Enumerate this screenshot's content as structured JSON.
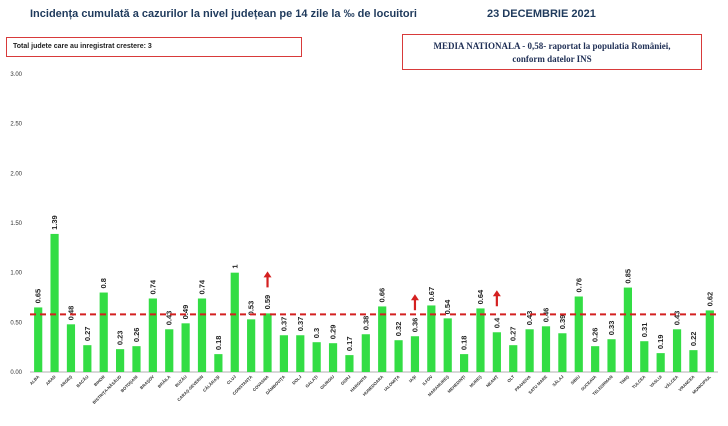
{
  "header": {
    "title": "Incidența cumulată a cazurilor la nivel județean pe 14 zile la ‰ de locuitori",
    "date": "23 DECEMBRIE 2021"
  },
  "notes": {
    "left": "Total judete care au inregistrat crestere: 3",
    "right_line1": "MEDIA NATIONALA - 0,58-  raportat la populatia României,",
    "right_line2": "conform datelor INS"
  },
  "colors": {
    "bar": "#33dd44",
    "mean_line": "#d42020",
    "arrow": "#d42020"
  },
  "chart_data": {
    "type": "bar",
    "categories": [
      "ALBA",
      "ARAD",
      "ARGEŞ",
      "BACĂU",
      "BIHOR",
      "BISTRIŢA-NĂSĂUD",
      "BOTOŞANI",
      "BRAŞOV",
      "BRĂILA",
      "BUZĂU",
      "CARAŞ-SEVERIN",
      "CĂLĂRAŞI",
      "CLUJ",
      "CONSTANŢA",
      "COVASNA",
      "DÂMBOVIŢA",
      "DOLJ",
      "GALAŢI",
      "GIURGIU",
      "GORJ",
      "HARGHITA",
      "HUNEDOARA",
      "IALOMIŢA",
      "IAŞI",
      "ILFOV",
      "MARAMUREŞ",
      "MEHEDINŢI",
      "MUREŞ",
      "NEAMŢ",
      "OLT",
      "PRAHOVA",
      "SATU MARE",
      "SĂLAJ",
      "SIBIU",
      "SUCEAVA",
      "TELEORMAN",
      "TIMIŞ",
      "TULCEA",
      "VASLUI",
      "VÂLCEA",
      "VRANCEA",
      "MUNICIPIUL"
    ],
    "values": [
      0.65,
      1.39,
      0.48,
      0.27,
      0.8,
      0.23,
      0.26,
      0.74,
      0.43,
      0.49,
      0.74,
      0.18,
      1,
      0.53,
      0.59,
      0.37,
      0.37,
      0.3,
      0.29,
      0.17,
      0.38,
      0.66,
      0.32,
      0.36,
      0.67,
      0.54,
      0.18,
      0.64,
      0.4,
      0.27,
      0.43,
      0.46,
      0.39,
      0.76,
      0.26,
      0.33,
      0.85,
      0.31,
      0.19,
      0.43,
      0.22,
      0.62
    ],
    "value_labels": [
      "0.65",
      "1.39",
      "0.48",
      "0.27",
      "0.8",
      "0.23",
      "0.26",
      "0.74",
      "0.43",
      "0.49",
      "0.74",
      "0.18",
      "1",
      "0.53",
      "0.59",
      "0.37",
      "0.37",
      "0.3",
      "0.29",
      "0.17",
      "0.38",
      "0.66",
      "0.32",
      "0.36",
      "0.67",
      "0.54",
      "0.18",
      "0.64",
      "0.4",
      "0.27",
      "0.43",
      "0.46",
      "0.39",
      "0.76",
      "0.26",
      "0.33",
      "0.85",
      "0.31",
      "0.19",
      "0.43",
      "0.22",
      "0.62"
    ],
    "increase_markers": [
      "COVASNA",
      "IAŞI",
      "NEAMŢ"
    ],
    "mean": 0.58,
    "ylim": [
      0,
      3
    ],
    "yticks": [
      "0.00",
      "0.50",
      "1.00",
      "1.50",
      "2.00",
      "2.50",
      "3.00"
    ],
    "grid": false,
    "legend": "none"
  }
}
